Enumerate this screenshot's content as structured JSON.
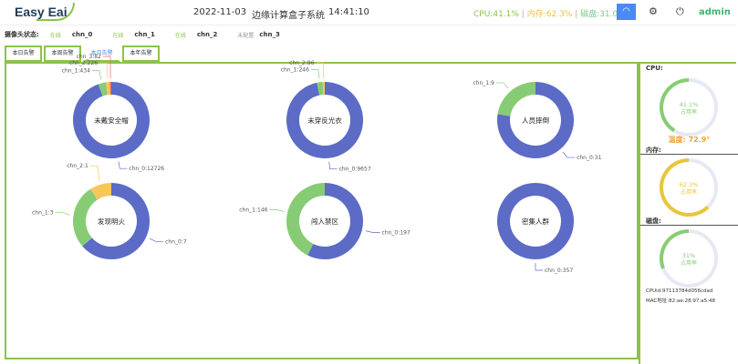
{
  "header": {
    "logo": "Easy Eai",
    "date": "2022-11-03",
    "title": "边缘计算盒子系统",
    "time": "14:41:10",
    "cpu": "CPU:41.1%",
    "mem": "内存:62.3%",
    "disk": "磁盘:31.0%",
    "sep": "|",
    "user": "admin"
  },
  "status": {
    "label": "摄像头状态:",
    "cameras": [
      {
        "state": "在线",
        "name": "chn_0"
      },
      {
        "state": "在线",
        "name": "chn_1"
      },
      {
        "state": "在线",
        "name": "chn_2"
      },
      {
        "state": "未配置",
        "name": "chn_3"
      }
    ]
  },
  "tabs": [
    {
      "label": "本日告警"
    },
    {
      "label": "本周告警"
    },
    {
      "label": "本月告警",
      "active": true
    },
    {
      "label": "本年告警"
    }
  ],
  "colors": {
    "chn_0": "#5b6bc6",
    "chn_1": "#87cc74",
    "chn_2": "#f8c65a",
    "chn_3": "#ee6b5a",
    "accent": "#8bc34a"
  },
  "chart_data": [
    {
      "type": "pie",
      "title": "未戴安全帽",
      "labels": [
        "chn_0",
        "chn_1",
        "chn_2",
        "chn_3"
      ],
      "values": [
        12726,
        434,
        226,
        82
      ]
    },
    {
      "type": "pie",
      "title": "未穿反光衣",
      "labels": [
        "chn_0",
        "chn_1",
        "chn_2"
      ],
      "values": [
        9657,
        246,
        86
      ]
    },
    {
      "type": "pie",
      "title": "人员摔倒",
      "labels": [
        "chn_0",
        "chn_1"
      ],
      "values": [
        31,
        9
      ]
    },
    {
      "type": "pie",
      "title": "发现明火",
      "labels": [
        "chn_0",
        "chn_1",
        "chn_2"
      ],
      "values": [
        7,
        3,
        1
      ]
    },
    {
      "type": "pie",
      "title": "闯入禁区",
      "labels": [
        "chn_0",
        "chn_1"
      ],
      "values": [
        197,
        146
      ]
    },
    {
      "type": "pie",
      "title": "密集人群",
      "labels": [
        "chn_0"
      ],
      "values": [
        357
      ]
    }
  ],
  "side": {
    "cpu_label": "CPU:",
    "cpu_pct": "41.1%",
    "cpu_value": 41.1,
    "usage": "占用率",
    "temp": "温度: 72.9°",
    "mem_label": "内存:",
    "mem_pct": "62.3%",
    "mem_value": 62.3,
    "disk_label": "磁盘:",
    "disk_pct": "31%",
    "disk_value": 31,
    "cpu_id": "CPUid:97113784d056cdad",
    "mac": "MAC地址:82:ae:28:97:a5:48"
  }
}
